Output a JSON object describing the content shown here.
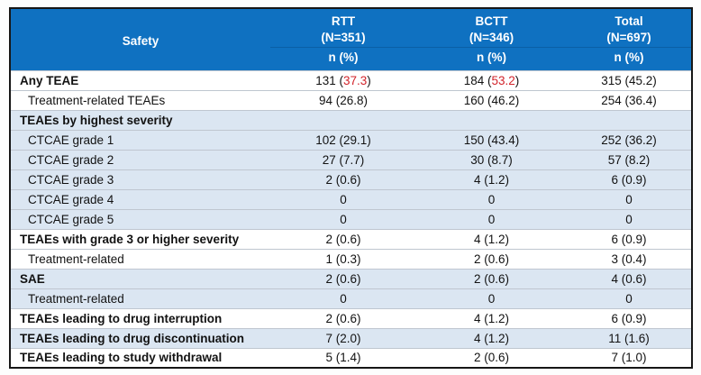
{
  "colors": {
    "header_bg": "#0f71c1",
    "header_divider": "#0a5fa6",
    "band_blue": "#dbe6f2",
    "highlight_red": "#d2232a",
    "outer_border": "#161616"
  },
  "table": {
    "title_column_header": "Safety",
    "unit_label": "n (%)",
    "group_columns": [
      {
        "label": "RTT",
        "n_label": "(N=351)"
      },
      {
        "label": "BCTT",
        "n_label": "(N=346)"
      },
      {
        "label": "Total",
        "n_label": "(N=697)"
      }
    ],
    "rows": [
      {
        "label": "Any TEAE",
        "bold": true,
        "indent": false,
        "band": "white",
        "values": [
          "131 (37.3)",
          "184 (53.2)",
          "315 (45.2)"
        ],
        "red_pct": [
          true,
          true,
          false
        ]
      },
      {
        "label": "Treatment-related TEAEs",
        "bold": false,
        "indent": true,
        "band": "white",
        "values": [
          "94 (26.8)",
          "160 (46.2)",
          "254 (36.4)"
        ]
      },
      {
        "label": "TEAEs by highest severity",
        "bold": true,
        "indent": false,
        "band": "blue",
        "values": [
          "",
          "",
          ""
        ]
      },
      {
        "label": "CTCAE grade 1",
        "bold": false,
        "indent": true,
        "band": "blue",
        "values": [
          "102 (29.1)",
          "150 (43.4)",
          "252 (36.2)"
        ]
      },
      {
        "label": "CTCAE grade 2",
        "bold": false,
        "indent": true,
        "band": "blue",
        "values": [
          "27 (7.7)",
          "30 (8.7)",
          "57 (8.2)"
        ]
      },
      {
        "label": "CTCAE grade 3",
        "bold": false,
        "indent": true,
        "band": "blue",
        "values": [
          "2 (0.6)",
          "4 (1.2)",
          "6 (0.9)"
        ]
      },
      {
        "label": "CTCAE grade 4",
        "bold": false,
        "indent": true,
        "band": "blue",
        "values": [
          "0",
          "0",
          "0"
        ]
      },
      {
        "label": "CTCAE grade 5",
        "bold": false,
        "indent": true,
        "band": "blue",
        "values": [
          "0",
          "0",
          "0"
        ]
      },
      {
        "label": "TEAEs with grade 3 or higher severity",
        "bold": true,
        "indent": false,
        "band": "white",
        "values": [
          "2 (0.6)",
          "4 (1.2)",
          "6 (0.9)"
        ]
      },
      {
        "label": "Treatment-related",
        "bold": false,
        "indent": true,
        "band": "white",
        "values": [
          "1 (0.3)",
          "2 (0.6)",
          "3 (0.4)"
        ]
      },
      {
        "label": "SAE",
        "bold": true,
        "indent": false,
        "band": "blue",
        "values": [
          "2 (0.6)",
          "2 (0.6)",
          "4 (0.6)"
        ]
      },
      {
        "label": "Treatment-related",
        "bold": false,
        "indent": true,
        "band": "blue",
        "values": [
          "0",
          "0",
          "0"
        ]
      },
      {
        "label": "TEAEs leading to drug interruption",
        "bold": true,
        "indent": false,
        "band": "white",
        "values": [
          "2 (0.6)",
          "4 (1.2)",
          "6 (0.9)"
        ]
      },
      {
        "label": "TEAEs leading to drug discontinuation",
        "bold": true,
        "indent": false,
        "band": "blue",
        "values": [
          "7 (2.0)",
          "4 (1.2)",
          "11 (1.6)"
        ]
      },
      {
        "label": "TEAEs leading to study withdrawal",
        "bold": true,
        "indent": false,
        "band": "white",
        "values": [
          "5 (1.4)",
          "2 (0.6)",
          "7 (1.0)"
        ]
      }
    ]
  },
  "chart_data": {
    "type": "table",
    "title": "Safety",
    "columns": [
      "Safety",
      "RTT (N=351) n (%)",
      "BCTT (N=346) n (%)",
      "Total (N=697) n (%)"
    ],
    "rows": [
      [
        "Any TEAE",
        "131 (37.3)",
        "184 (53.2)",
        "315 (45.2)"
      ],
      [
        "Treatment-related TEAEs",
        "94 (26.8)",
        "160 (46.2)",
        "254 (36.4)"
      ],
      [
        "TEAEs by highest severity",
        "",
        "",
        ""
      ],
      [
        "CTCAE grade 1",
        "102 (29.1)",
        "150 (43.4)",
        "252 (36.2)"
      ],
      [
        "CTCAE grade 2",
        "27 (7.7)",
        "30 (8.7)",
        "57 (8.2)"
      ],
      [
        "CTCAE grade 3",
        "2 (0.6)",
        "4 (1.2)",
        "6 (0.9)"
      ],
      [
        "CTCAE grade 4",
        "0",
        "0",
        "0"
      ],
      [
        "CTCAE grade 5",
        "0",
        "0",
        "0"
      ],
      [
        "TEAEs with grade 3 or higher severity",
        "2 (0.6)",
        "4 (1.2)",
        "6 (0.9)"
      ],
      [
        "Treatment-related",
        "1 (0.3)",
        "2 (0.6)",
        "3 (0.4)"
      ],
      [
        "SAE",
        "2 (0.6)",
        "2 (0.6)",
        "4 (0.6)"
      ],
      [
        "Treatment-related",
        "0",
        "0",
        "0"
      ],
      [
        "TEAEs leading to drug interruption",
        "2 (0.6)",
        "4 (1.2)",
        "6 (0.9)"
      ],
      [
        "TEAEs leading to drug discontinuation",
        "7 (2.0)",
        "4 (1.2)",
        "11 (1.6)"
      ],
      [
        "TEAEs leading to study withdrawal",
        "5 (1.4)",
        "2 (0.6)",
        "7 (1.0)"
      ]
    ]
  }
}
